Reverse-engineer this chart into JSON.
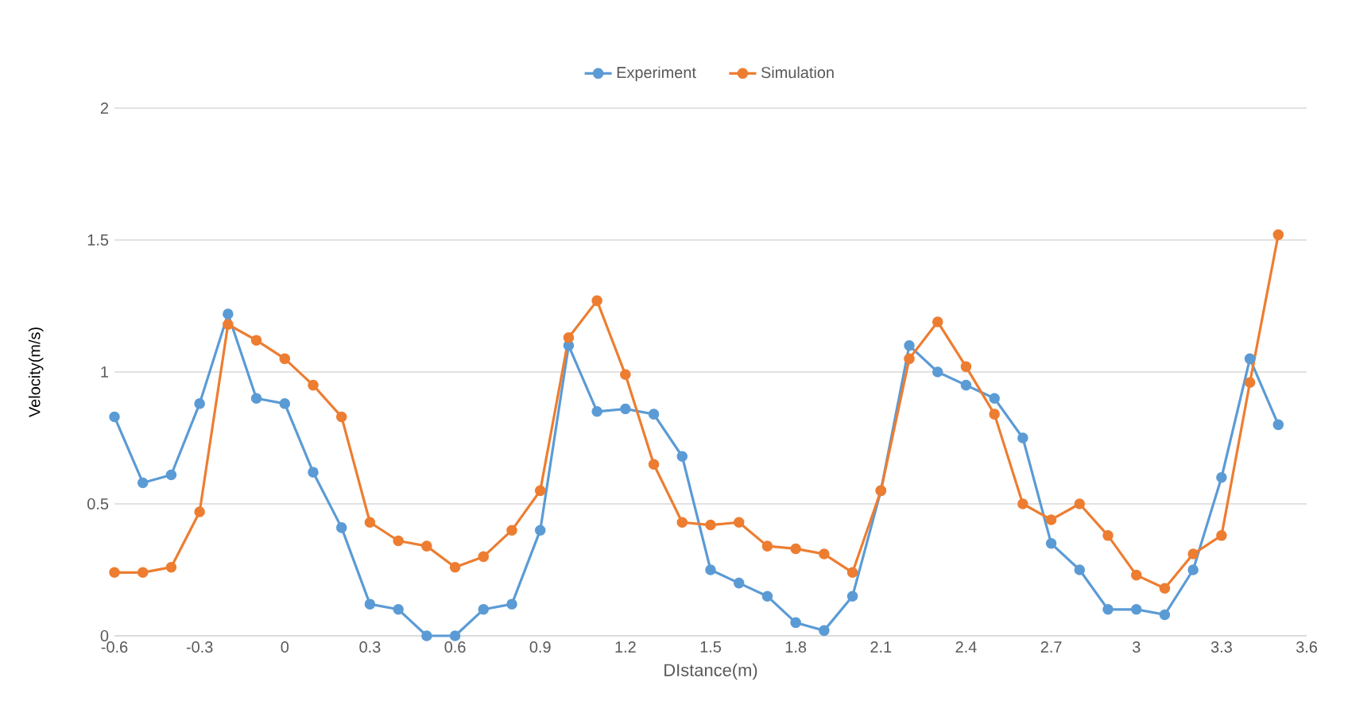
{
  "chart_data": {
    "type": "line",
    "xlabel": "DIstance(m)",
    "ylabel": "Velocity(m/s)",
    "x": [
      -0.6,
      -0.5,
      -0.4,
      -0.3,
      -0.2,
      -0.1,
      0,
      0.1,
      0.2,
      0.3,
      0.4,
      0.5,
      0.6,
      0.7,
      0.8,
      0.9,
      1.0,
      1.1,
      1.2,
      1.3,
      1.4,
      1.5,
      1.6,
      1.7,
      1.8,
      1.9,
      2.0,
      2.1,
      2.2,
      2.3,
      2.4,
      2.5,
      2.6,
      2.7,
      2.8,
      2.9,
      3.0,
      3.1,
      3.2,
      3.3,
      3.4,
      3.5
    ],
    "series": [
      {
        "name": "Experiment",
        "color": "#5b9bd5",
        "values": [
          0.83,
          0.58,
          0.61,
          0.88,
          1.22,
          0.9,
          0.88,
          0.62,
          0.41,
          0.12,
          0.1,
          0.0,
          0.0,
          0.1,
          0.12,
          0.4,
          1.1,
          0.85,
          0.86,
          0.84,
          0.68,
          0.25,
          0.2,
          0.15,
          0.05,
          0.02,
          0.15,
          0.55,
          1.1,
          1.0,
          0.95,
          0.9,
          0.75,
          0.35,
          0.25,
          0.1,
          0.1,
          0.08,
          0.25,
          0.6,
          1.05,
          0.8
        ]
      },
      {
        "name": "Simulation",
        "color": "#ed7d31",
        "values": [
          0.24,
          0.24,
          0.26,
          0.47,
          1.18,
          1.12,
          1.05,
          0.95,
          0.83,
          0.43,
          0.36,
          0.34,
          0.26,
          0.3,
          0.4,
          0.55,
          1.13,
          1.27,
          0.99,
          0.65,
          0.43,
          0.42,
          0.43,
          0.34,
          0.33,
          0.31,
          0.24,
          0.55,
          1.05,
          1.19,
          1.02,
          0.84,
          0.5,
          0.44,
          0.5,
          0.38,
          0.23,
          0.18,
          0.31,
          0.38,
          0.96,
          1.52
        ]
      }
    ],
    "xlim": [
      -0.6,
      3.6
    ],
    "xticks": [
      -0.6,
      -0.3,
      0,
      0.3,
      0.6,
      0.9,
      1.2,
      1.5,
      1.8,
      2.1,
      2.4,
      2.7,
      3,
      3.3,
      3.6
    ],
    "ylim": [
      0,
      2
    ],
    "yticks": [
      0,
      0.5,
      1,
      1.5,
      2
    ],
    "grid": "y",
    "legend": "top",
    "marker": "circle"
  }
}
